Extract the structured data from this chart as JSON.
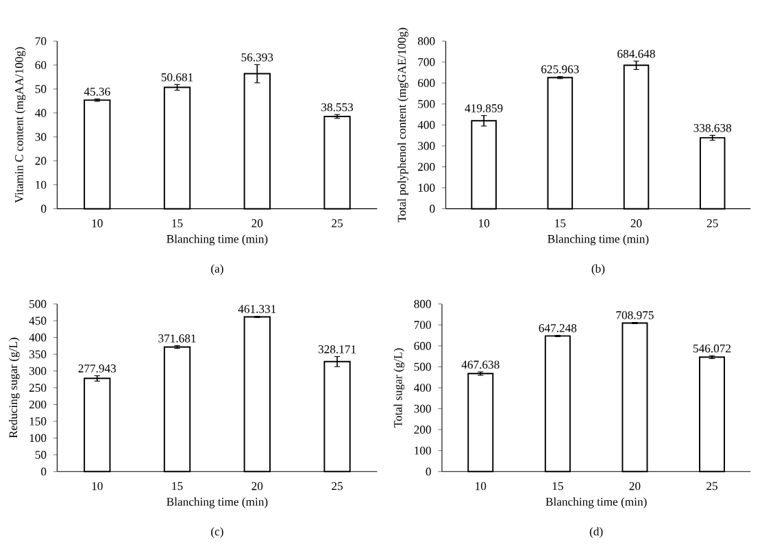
{
  "chart_data": [
    {
      "type": "bar",
      "categories": [
        "10",
        "15",
        "20",
        "25"
      ],
      "xlabel": "Blanching time (min)",
      "ylabel": "Vitamin C content (mgAA/100g)",
      "values": [
        45.36,
        50.681,
        56.393,
        38.553
      ],
      "errors": [
        0.5,
        1.2,
        3.8,
        0.8
      ],
      "color": "#ffffff",
      "data_labels": true,
      "ylim": [
        0,
        70
      ],
      "yticks": [
        0,
        10,
        20,
        30,
        40,
        50,
        60,
        70
      ],
      "annotations": [
        "(a)"
      ]
    },
    {
      "type": "bar",
      "categories": [
        "10",
        "15",
        "20",
        "25"
      ],
      "xlabel": "Blanching time (min)",
      "ylabel": "Total polyphenol content (mgGAE/100g)",
      "values": [
        419.859,
        625.963,
        684.648,
        338.638
      ],
      "errors": [
        25,
        5,
        20,
        12
      ],
      "color": "#ffffff",
      "data_labels": true,
      "ylim": [
        0,
        800
      ],
      "yticks": [
        0,
        100,
        200,
        300,
        400,
        500,
        600,
        700,
        800
      ],
      "annotations": [
        "(b)"
      ]
    },
    {
      "type": "bar",
      "categories": [
        "10",
        "15",
        "20",
        "25"
      ],
      "xlabel": "Blanching time (min)",
      "ylabel": "Reducing sugar (g/L)",
      "values": [
        277.943,
        371.681,
        461.331,
        328.171
      ],
      "errors": [
        8,
        4,
        2,
        15
      ],
      "color": "#ffffff",
      "data_labels": true,
      "ylim": [
        0,
        500
      ],
      "yticks": [
        0,
        50,
        100,
        150,
        200,
        250,
        300,
        350,
        400,
        450,
        500
      ],
      "annotations": [
        "(c)"
      ]
    },
    {
      "type": "bar",
      "categories": [
        "10",
        "15",
        "20",
        "25"
      ],
      "xlabel": "Blanching time (min)",
      "ylabel": "Total sugar (g/L)",
      "values": [
        467.638,
        647.248,
        708.975,
        546.072
      ],
      "errors": [
        8,
        3,
        3,
        7
      ],
      "color": "#ffffff",
      "data_labels": true,
      "ylim": [
        0,
        800
      ],
      "yticks": [
        0,
        100,
        200,
        300,
        400,
        500,
        600,
        700,
        800
      ],
      "annotations": [
        "(d)"
      ]
    }
  ]
}
